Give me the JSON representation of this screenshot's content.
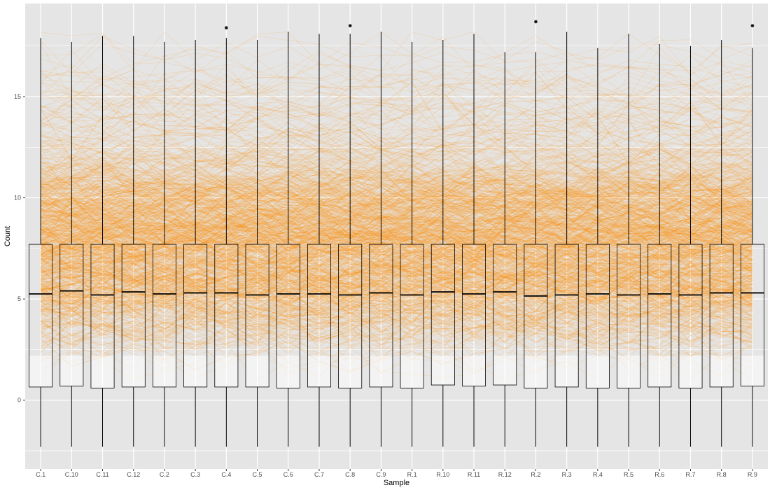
{
  "chart_data": {
    "type": "boxplot",
    "xlabel": "Sample",
    "ylabel": "Count",
    "ylim": [
      -3.4,
      19.6
    ],
    "yticks": [
      0,
      5,
      10,
      15
    ],
    "grid": true,
    "legend": "none",
    "colors": {
      "panel": "#e5e5e5",
      "grid": "#ffffff",
      "lines": "#ff8c00",
      "box_fill": "#ffffff",
      "box_stroke": "#000000",
      "outlier": "#1a1a1a"
    },
    "categories": [
      "C.1",
      "C.10",
      "C.11",
      "C.12",
      "C.2",
      "C.3",
      "C.4",
      "C.5",
      "C.6",
      "C.7",
      "C.8",
      "C.9",
      "R.1",
      "R.10",
      "R.11",
      "R.12",
      "R.2",
      "R.3",
      "R.4",
      "R.5",
      "R.6",
      "R.7",
      "R.8",
      "R.9"
    ],
    "boxes": [
      {
        "min": -2.3,
        "q1": 0.65,
        "median": 5.25,
        "q3": 7.7,
        "max": 17.9,
        "outliers": []
      },
      {
        "min": -2.3,
        "q1": 0.7,
        "median": 5.4,
        "q3": 7.7,
        "max": 17.7,
        "outliers": []
      },
      {
        "min": -2.3,
        "q1": 0.6,
        "median": 5.2,
        "q3": 7.7,
        "max": 18.0,
        "outliers": []
      },
      {
        "min": -2.3,
        "q1": 0.65,
        "median": 5.35,
        "q3": 7.7,
        "max": 18.0,
        "outliers": []
      },
      {
        "min": -2.3,
        "q1": 0.65,
        "median": 5.25,
        "q3": 7.7,
        "max": 17.7,
        "outliers": []
      },
      {
        "min": -2.3,
        "q1": 0.65,
        "median": 5.3,
        "q3": 7.7,
        "max": 17.8,
        "outliers": []
      },
      {
        "min": -2.3,
        "q1": 0.65,
        "median": 5.3,
        "q3": 7.7,
        "max": 17.9,
        "outliers": [
          18.4
        ]
      },
      {
        "min": -2.3,
        "q1": 0.65,
        "median": 5.2,
        "q3": 7.7,
        "max": 17.8,
        "outliers": []
      },
      {
        "min": -2.3,
        "q1": 0.6,
        "median": 5.25,
        "q3": 7.7,
        "max": 18.2,
        "outliers": []
      },
      {
        "min": -2.3,
        "q1": 0.65,
        "median": 5.25,
        "q3": 7.7,
        "max": 18.1,
        "outliers": []
      },
      {
        "min": -2.3,
        "q1": 0.6,
        "median": 5.2,
        "q3": 7.7,
        "max": 18.1,
        "outliers": [
          18.5
        ]
      },
      {
        "min": -2.3,
        "q1": 0.65,
        "median": 5.3,
        "q3": 7.7,
        "max": 18.2,
        "outliers": []
      },
      {
        "min": -2.3,
        "q1": 0.6,
        "median": 5.2,
        "q3": 7.7,
        "max": 17.7,
        "outliers": []
      },
      {
        "min": -2.3,
        "q1": 0.75,
        "median": 5.35,
        "q3": 7.7,
        "max": 17.8,
        "outliers": []
      },
      {
        "min": -2.3,
        "q1": 0.7,
        "median": 5.25,
        "q3": 7.7,
        "max": 18.1,
        "outliers": []
      },
      {
        "min": -2.3,
        "q1": 0.75,
        "median": 5.35,
        "q3": 7.7,
        "max": 17.2,
        "outliers": []
      },
      {
        "min": -2.3,
        "q1": 0.6,
        "median": 5.15,
        "q3": 7.7,
        "max": 17.2,
        "outliers": [
          18.7
        ]
      },
      {
        "min": -2.3,
        "q1": 0.65,
        "median": 5.2,
        "q3": 7.7,
        "max": 18.2,
        "outliers": []
      },
      {
        "min": -2.3,
        "q1": 0.6,
        "median": 5.25,
        "q3": 7.7,
        "max": 17.4,
        "outliers": []
      },
      {
        "min": -2.3,
        "q1": 0.6,
        "median": 5.2,
        "q3": 7.7,
        "max": 18.1,
        "outliers": []
      },
      {
        "min": -2.3,
        "q1": 0.65,
        "median": 5.25,
        "q3": 7.7,
        "max": 17.6,
        "outliers": []
      },
      {
        "min": -2.3,
        "q1": 0.6,
        "median": 5.2,
        "q3": 7.7,
        "max": 17.5,
        "outliers": []
      },
      {
        "min": -2.3,
        "q1": 0.65,
        "median": 5.3,
        "q3": 7.7,
        "max": 17.8,
        "outliers": []
      },
      {
        "min": -2.3,
        "q1": 0.7,
        "median": 5.3,
        "q3": 7.7,
        "max": 17.4,
        "outliers": [
          18.5
        ]
      }
    ]
  }
}
